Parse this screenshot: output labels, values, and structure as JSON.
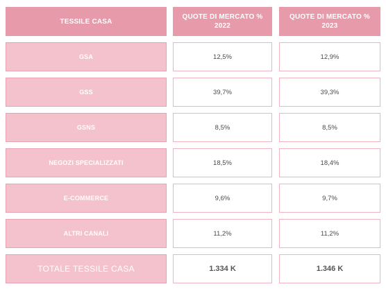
{
  "table": {
    "headers": [
      "TESSILE CASA",
      "QUOTE DI MERCATO %\n2022",
      "QUOTE DI MERCATO %\n2023"
    ],
    "rows": [
      {
        "channel": "GSA",
        "share_2022": "12,5%",
        "share_2023": "12,9%"
      },
      {
        "channel": "GSS",
        "share_2022": "39,7%",
        "share_2023": "39,3%"
      },
      {
        "channel": "GSNS",
        "share_2022": "8,5%",
        "share_2023": "8,5%"
      },
      {
        "channel": "NEGOZI SPECIALIZZATI",
        "share_2022": "18,5%",
        "share_2023": "18,4%"
      },
      {
        "channel": "E-COMMERCE",
        "share_2022": "9,6%",
        "share_2023": "9,7%"
      },
      {
        "channel": "ALTRI CANALI",
        "share_2022": "11,2%",
        "share_2023": "11,2%"
      }
    ],
    "total": {
      "label": "TOTALE TESSILE CASA",
      "value_2022": "1.334 K",
      "value_2023": "1.346 K"
    }
  },
  "colors": {
    "header_bg": "#e79aa9",
    "label_bg": "#f4c2cc",
    "border": "#eeb3bf",
    "value_text": "#4a4a4a"
  }
}
